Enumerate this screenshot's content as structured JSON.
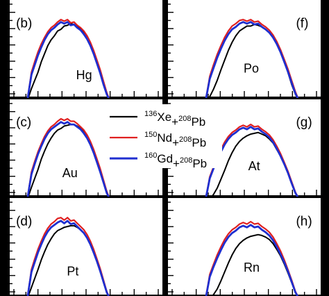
{
  "chart_data": [
    {
      "type": "line",
      "panel_label": "(b)",
      "element": "Hg",
      "x": [
        0,
        1,
        2,
        3,
        4,
        5,
        6,
        7,
        8,
        9,
        10,
        11,
        12,
        13,
        14,
        15,
        16,
        17,
        18,
        19,
        20,
        21,
        22,
        23,
        24
      ],
      "series": [
        {
          "name": "136Xe+208Pb",
          "color": "#000000",
          "values": [
            0.15,
            0.25,
            0.35,
            0.48,
            0.58,
            0.68,
            0.75,
            0.8,
            0.86,
            0.88,
            0.92,
            0.93,
            0.95,
            0.94,
            0.92,
            0.88,
            0.84,
            0.78,
            0.7,
            0.6,
            0.48,
            0.35,
            0.2,
            0.08,
            0.0
          ]
        },
        {
          "name": "150Nd+208Pb",
          "color": "#e02020",
          "values": [
            0.35,
            0.48,
            0.6,
            0.7,
            0.78,
            0.85,
            0.9,
            0.93,
            0.97,
            1.0,
            0.98,
            1.0,
            0.96,
            0.97,
            0.93,
            0.9,
            0.86,
            0.8,
            0.72,
            0.62,
            0.5,
            0.38,
            0.24,
            0.1,
            0.0
          ]
        },
        {
          "name": "160Gd+208Pb",
          "color": "#1f2fd0",
          "values": [
            0.32,
            0.44,
            0.56,
            0.66,
            0.75,
            0.82,
            0.87,
            0.9,
            0.94,
            0.97,
            0.95,
            0.97,
            0.93,
            0.94,
            0.9,
            0.87,
            0.82,
            0.76,
            0.68,
            0.58,
            0.46,
            0.34,
            0.2,
            0.08,
            0.0
          ]
        }
      ]
    },
    {
      "type": "line",
      "panel_label": "(f)",
      "element": "Po",
      "x": [
        0,
        1,
        2,
        3,
        4,
        5,
        6,
        7,
        8,
        9,
        10,
        11,
        12,
        13,
        14,
        15,
        16,
        17,
        18,
        19,
        20,
        21,
        22,
        23,
        24
      ],
      "series": [
        {
          "name": "136Xe+208Pb",
          "color": "#000000",
          "values": [
            0.05,
            0.14,
            0.25,
            0.38,
            0.5,
            0.62,
            0.72,
            0.8,
            0.86,
            0.89,
            0.92,
            0.92,
            0.94,
            0.93,
            0.91,
            0.88,
            0.84,
            0.78,
            0.7,
            0.6,
            0.48,
            0.35,
            0.2,
            0.08,
            0.0
          ]
        },
        {
          "name": "150Nd+208Pb",
          "color": "#e02020",
          "values": [
            0.3,
            0.44,
            0.57,
            0.68,
            0.78,
            0.86,
            0.92,
            0.95,
            0.99,
            1.0,
            0.98,
            1.0,
            0.97,
            0.98,
            0.94,
            0.91,
            0.87,
            0.81,
            0.73,
            0.63,
            0.51,
            0.39,
            0.25,
            0.11,
            0.0
          ]
        },
        {
          "name": "160Gd+208Pb",
          "color": "#1f2fd0",
          "values": [
            0.27,
            0.4,
            0.53,
            0.64,
            0.74,
            0.82,
            0.88,
            0.91,
            0.95,
            0.97,
            0.95,
            0.97,
            0.94,
            0.95,
            0.91,
            0.88,
            0.84,
            0.78,
            0.7,
            0.6,
            0.48,
            0.36,
            0.22,
            0.09,
            0.0
          ]
        }
      ]
    },
    {
      "type": "line",
      "panel_label": "(c)",
      "element": "Au",
      "x": [
        0,
        1,
        2,
        3,
        4,
        5,
        6,
        7,
        8,
        9,
        10,
        11,
        12,
        13,
        14,
        15,
        16,
        17,
        18,
        19,
        20,
        21,
        22,
        23,
        24
      ],
      "series": [
        {
          "name": "136Xe+208Pb",
          "color": "#000000",
          "values": [
            0.15,
            0.26,
            0.37,
            0.5,
            0.6,
            0.69,
            0.76,
            0.82,
            0.86,
            0.88,
            0.91,
            0.92,
            0.93,
            0.93,
            0.91,
            0.88,
            0.84,
            0.78,
            0.7,
            0.6,
            0.48,
            0.35,
            0.21,
            0.08,
            0.0
          ]
        },
        {
          "name": "150Nd+208Pb",
          "color": "#e02020",
          "values": [
            0.34,
            0.47,
            0.59,
            0.69,
            0.78,
            0.85,
            0.9,
            0.93,
            0.97,
            1.0,
            0.98,
            1.0,
            0.97,
            0.97,
            0.94,
            0.9,
            0.86,
            0.8,
            0.72,
            0.62,
            0.5,
            0.38,
            0.24,
            0.1,
            0.0
          ]
        },
        {
          "name": "160Gd+208Pb",
          "color": "#1f2fd0",
          "values": [
            0.31,
            0.44,
            0.56,
            0.66,
            0.75,
            0.82,
            0.87,
            0.9,
            0.93,
            0.96,
            0.94,
            0.96,
            0.93,
            0.93,
            0.9,
            0.87,
            0.82,
            0.76,
            0.68,
            0.58,
            0.46,
            0.34,
            0.21,
            0.08,
            0.0
          ]
        }
      ]
    },
    {
      "type": "line",
      "panel_label": "(g)",
      "element": "At",
      "x": [
        0,
        1,
        2,
        3,
        4,
        5,
        6,
        7,
        8,
        9,
        10,
        11,
        12,
        13,
        14,
        15,
        16,
        17,
        18,
        19,
        20,
        21,
        22,
        23,
        24
      ],
      "series": [
        {
          "name": "136Xe+208Pb",
          "color": "#000000",
          "values": [
            0.0,
            0.06,
            0.14,
            0.25,
            0.36,
            0.48,
            0.58,
            0.66,
            0.72,
            0.76,
            0.79,
            0.81,
            0.82,
            0.83,
            0.81,
            0.79,
            0.75,
            0.7,
            0.62,
            0.54,
            0.44,
            0.33,
            0.2,
            0.08,
            0.0
          ]
        },
        {
          "name": "150Nd+208Pb",
          "color": "#e02020",
          "values": [
            0.28,
            0.4,
            0.52,
            0.62,
            0.71,
            0.78,
            0.83,
            0.86,
            0.9,
            0.92,
            0.9,
            0.93,
            0.9,
            0.91,
            0.87,
            0.84,
            0.8,
            0.74,
            0.66,
            0.57,
            0.46,
            0.35,
            0.22,
            0.09,
            0.0
          ]
        },
        {
          "name": "160Gd+208Pb",
          "color": "#1f2fd0",
          "values": [
            0.26,
            0.38,
            0.49,
            0.59,
            0.68,
            0.75,
            0.8,
            0.83,
            0.87,
            0.89,
            0.87,
            0.9,
            0.87,
            0.88,
            0.84,
            0.81,
            0.77,
            0.71,
            0.63,
            0.54,
            0.44,
            0.33,
            0.2,
            0.08,
            0.0
          ]
        }
      ]
    },
    {
      "type": "line",
      "panel_label": "(d)",
      "element": "Pt",
      "x": [
        0,
        1,
        2,
        3,
        4,
        5,
        6,
        7,
        8,
        9,
        10,
        11,
        12,
        13,
        14,
        15,
        16,
        17,
        18,
        19,
        20,
        21,
        22,
        23,
        24
      ],
      "series": [
        {
          "name": "136Xe+208Pb",
          "color": "#000000",
          "values": [
            0.14,
            0.25,
            0.36,
            0.48,
            0.58,
            0.67,
            0.74,
            0.8,
            0.84,
            0.86,
            0.88,
            0.89,
            0.9,
            0.9,
            0.88,
            0.85,
            0.81,
            0.75,
            0.67,
            0.57,
            0.46,
            0.34,
            0.2,
            0.08,
            0.0
          ]
        },
        {
          "name": "150Nd+208Pb",
          "color": "#e02020",
          "values": [
            0.36,
            0.49,
            0.61,
            0.71,
            0.8,
            0.87,
            0.92,
            0.95,
            0.99,
            1.0,
            0.97,
            1.0,
            0.96,
            0.97,
            0.93,
            0.89,
            0.85,
            0.79,
            0.71,
            0.61,
            0.49,
            0.37,
            0.23,
            0.09,
            0.0
          ]
        },
        {
          "name": "160Gd+208Pb",
          "color": "#1f2fd0",
          "values": [
            0.33,
            0.45,
            0.57,
            0.67,
            0.76,
            0.83,
            0.88,
            0.91,
            0.94,
            0.96,
            0.93,
            0.96,
            0.92,
            0.93,
            0.89,
            0.85,
            0.81,
            0.75,
            0.67,
            0.57,
            0.46,
            0.34,
            0.21,
            0.08,
            0.0
          ]
        }
      ]
    },
    {
      "type": "line",
      "panel_label": "(h)",
      "element": "Rn",
      "x": [
        0,
        1,
        2,
        3,
        4,
        5,
        6,
        7,
        8,
        9,
        10,
        11,
        12,
        13,
        14,
        15,
        16,
        17,
        18,
        19,
        20,
        21,
        22,
        23,
        24
      ],
      "series": [
        {
          "name": "136Xe+208Pb",
          "color": "#000000",
          "values": [
            0.0,
            0.05,
            0.12,
            0.22,
            0.33,
            0.44,
            0.54,
            0.62,
            0.68,
            0.72,
            0.75,
            0.77,
            0.78,
            0.79,
            0.78,
            0.76,
            0.73,
            0.68,
            0.61,
            0.53,
            0.43,
            0.32,
            0.2,
            0.08,
            0.0
          ]
        },
        {
          "name": "150Nd+208Pb",
          "color": "#e02020",
          "values": [
            0.3,
            0.42,
            0.54,
            0.64,
            0.73,
            0.8,
            0.85,
            0.88,
            0.92,
            0.94,
            0.92,
            0.95,
            0.92,
            0.93,
            0.89,
            0.86,
            0.82,
            0.76,
            0.68,
            0.59,
            0.48,
            0.36,
            0.23,
            0.09,
            0.0
          ]
        },
        {
          "name": "160Gd+208Pb",
          "color": "#1f2fd0",
          "values": [
            0.27,
            0.39,
            0.5,
            0.6,
            0.69,
            0.76,
            0.81,
            0.84,
            0.88,
            0.9,
            0.88,
            0.91,
            0.88,
            0.89,
            0.85,
            0.82,
            0.78,
            0.72,
            0.64,
            0.55,
            0.45,
            0.34,
            0.21,
            0.08,
            0.0
          ]
        }
      ]
    }
  ],
  "legend": {
    "entries": [
      {
        "mass1": "136",
        "sym1": "Xe",
        "plus": "+",
        "mass2": "208",
        "sym2": "Pb",
        "color": "#000000"
      },
      {
        "mass1": "150",
        "sym1": "Nd",
        "plus": "+",
        "mass2": "208",
        "sym2": "Pb",
        "color": "#e02020"
      },
      {
        "mass1": "160",
        "sym1": "Gd",
        "plus": "+",
        "mass2": "208",
        "sym2": "Pb",
        "color": "#1f2fd0"
      }
    ]
  }
}
